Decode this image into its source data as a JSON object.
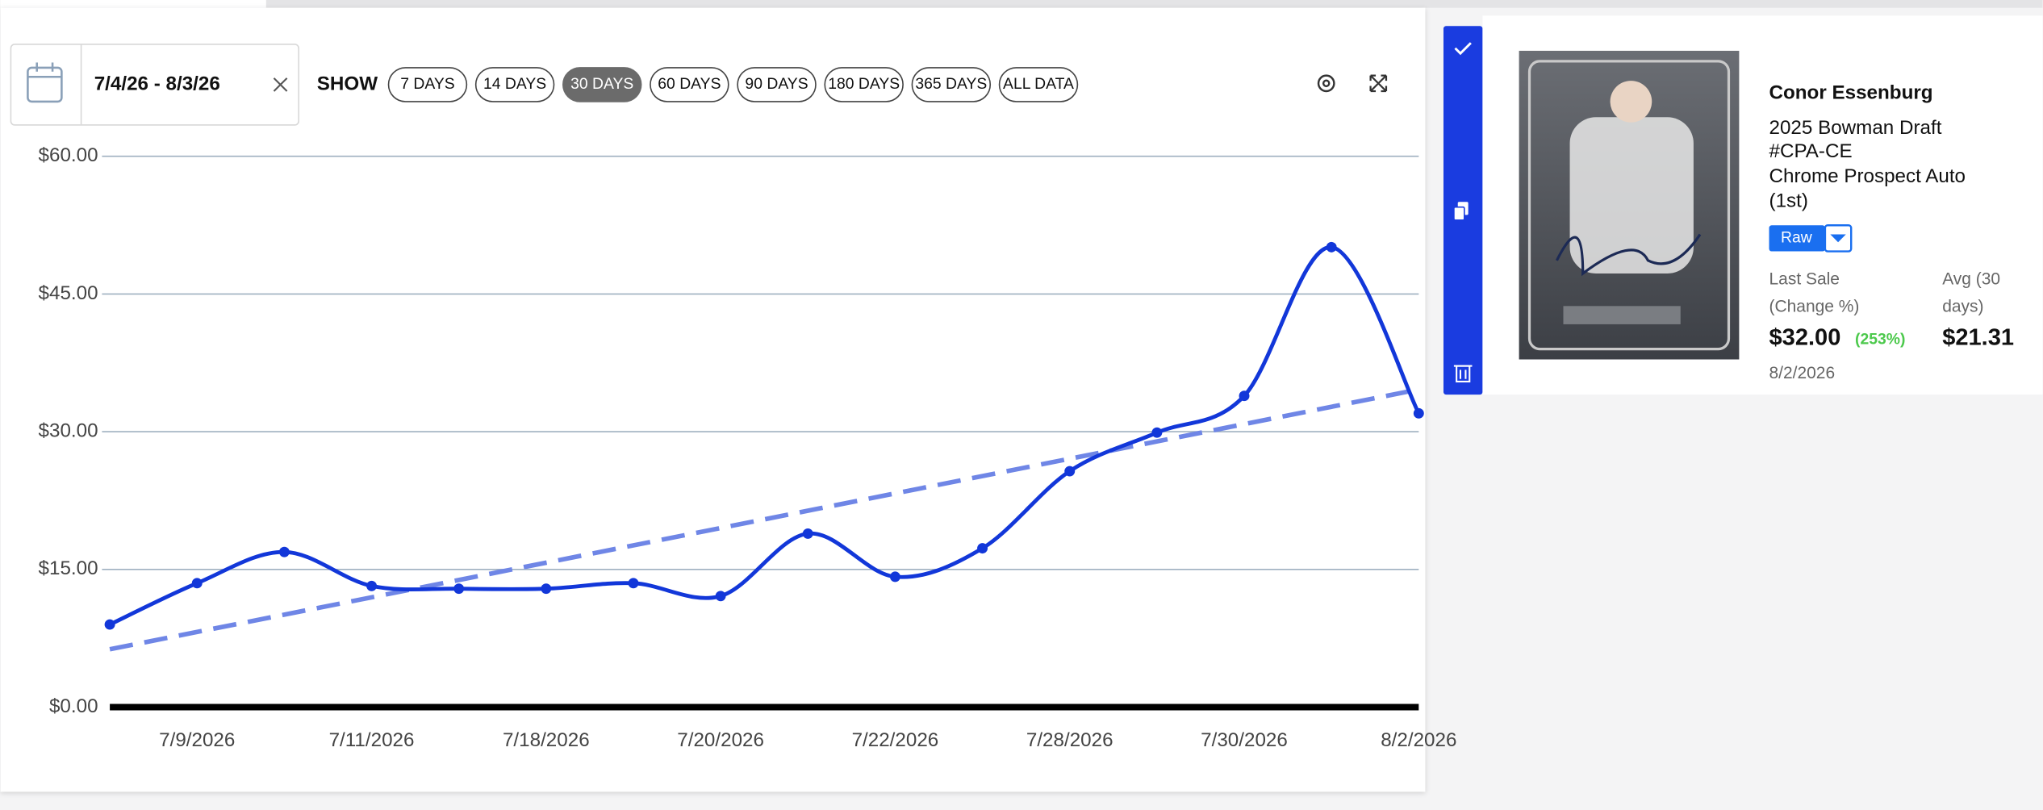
{
  "date_range": "7/4/26 - 8/3/26",
  "show_label": "SHOW",
  "range_buttons": [
    "7 DAYS",
    "14 DAYS",
    "30 DAYS",
    "60 DAYS",
    "90 DAYS",
    "180 DAYS",
    "365 DAYS",
    "ALL DATA"
  ],
  "active_range_index": 2,
  "card": {
    "player": "Conor Essenburg",
    "set": "2025 Bowman Draft",
    "number": "#CPA-CE",
    "name": "Chrome Prospect Auto",
    "variant": "(1st)",
    "grade": "Raw",
    "last_sale_label": "Last Sale",
    "last_sale_sublabel": "(Change %)",
    "last_sale": "$32.00",
    "change": "(253%)",
    "avg_label": "Avg (30",
    "avg_sublabel": "days)",
    "avg": "$21.31",
    "last_sale_date": "8/2/2026"
  },
  "chart_data": {
    "type": "line",
    "categories": [
      null,
      "7/9/2026",
      null,
      "7/11/2026",
      null,
      "7/18/2026",
      null,
      "7/20/2026",
      null,
      "7/22/2026",
      null,
      "7/28/2026",
      null,
      "7/30/2026",
      null,
      "8/2/2026"
    ],
    "series": [
      {
        "color": "#1237d9",
        "values": [
          9.0,
          13.5,
          16.9,
          13.2,
          12.9,
          12.9,
          13.5,
          12.1,
          18.9,
          14.2,
          17.3,
          25.7,
          29.9,
          33.9,
          50.1,
          32.0
        ]
      }
    ],
    "trendline": {
      "color": "#6f86e6",
      "values": [
        6.3,
        34.6
      ]
    },
    "ylim": [
      0,
      60
    ],
    "yticks": [
      {
        "value": 0,
        "label": "$0.00"
      },
      {
        "value": 15,
        "label": "$15.00"
      },
      {
        "value": 30,
        "label": "$30.00"
      },
      {
        "value": 45,
        "label": "$45.00"
      },
      {
        "value": 60,
        "label": "$60.00"
      }
    ],
    "grid": true
  }
}
